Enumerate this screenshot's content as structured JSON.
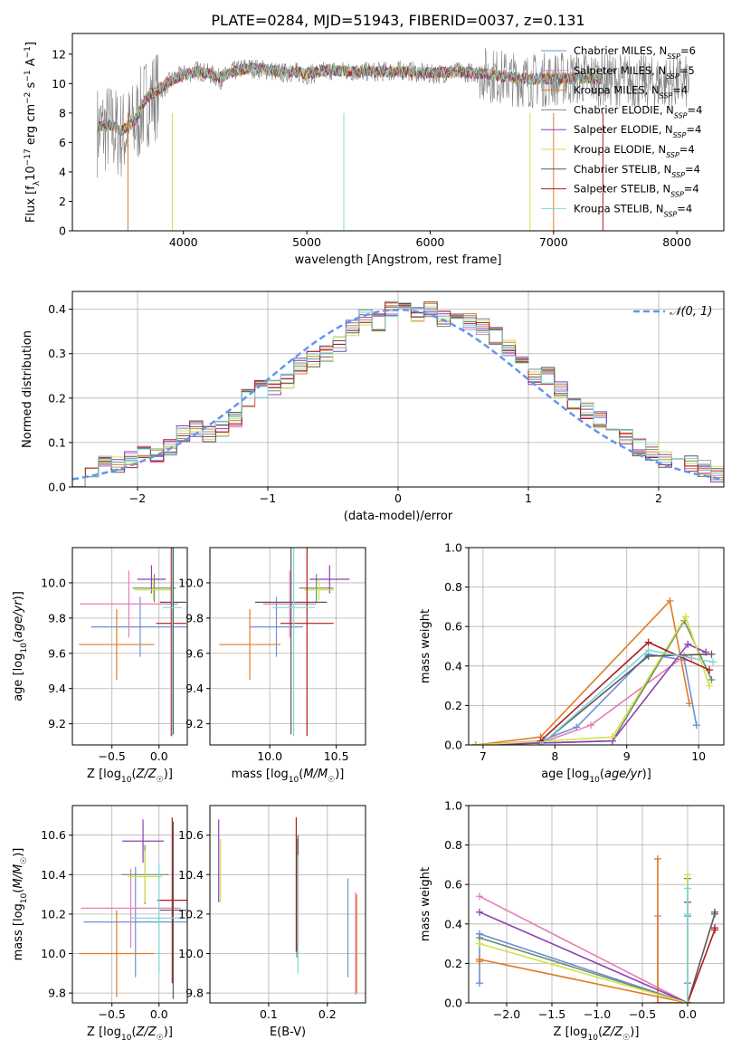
{
  "title": "PLATE=0284, MJD=51943, FIBERID=0037, z=0.131",
  "colors": {
    "Chabrier MILES": "#6f8fd8",
    "Salpeter MILES": "#e77cb6",
    "Kroupa MILES": "#e07b28",
    "Chabrier ELODIE": "#6e8f6e",
    "Salpeter ELODIE": "#8e3fb3",
    "Kroupa ELODIE": "#d2e24a",
    "Chabrier STELIB": "#5a5a5a",
    "Salpeter STELIB": "#b01e1e",
    "Kroupa STELIB": "#7fd8d8"
  },
  "chart_data": [
    {
      "id": "spectrum",
      "type": "line",
      "xlabel": "wavelength [Angstrom, rest frame]",
      "ylabel": "Flux [f_λ10^-17 erg cm^-2 s^-1 A^-1]",
      "xlim": [
        3100,
        8380
      ],
      "ylim": [
        0,
        13.4
      ],
      "xticks": [
        4000,
        5000,
        6000,
        7000,
        8000
      ],
      "yticks": [
        0,
        2,
        4,
        6,
        8,
        10,
        12
      ],
      "legend_position": "top-right",
      "legend": [
        "Chabrier MILES, N_SSP=6",
        "Salpeter MILES, N_SSP=5",
        "Kroupa MILES, N_SSP=4",
        "Chabrier ELODIE, N_SSP=4",
        "Salpeter ELODIE, N_SSP=4",
        "Kroupa ELODIE, N_SSP=4",
        "Chabrier STELIB, N_SSP=4",
        "Salpeter STELIB, N_SSP=4",
        "Kroupa STELIB, N_SSP=4"
      ],
      "data_x": [
        3300,
        3400,
        3500,
        3600,
        3700,
        3800,
        3900,
        4000,
        4100,
        4200,
        4300,
        4400,
        4500,
        4600,
        4700,
        4800,
        4900,
        5000,
        5200,
        5400,
        5600,
        5800,
        6000,
        6200,
        6400,
        6600,
        6800,
        7000,
        7200,
        7400,
        7600,
        7800,
        8000,
        8100
      ],
      "data_y": [
        6.8,
        7.0,
        6.5,
        7.1,
        8.8,
        9.4,
        10.2,
        10.6,
        10.9,
        10.7,
        10.3,
        10.8,
        11.1,
        11.0,
        10.9,
        10.7,
        10.8,
        10.6,
        10.9,
        10.8,
        10.8,
        10.9,
        10.6,
        10.8,
        10.7,
        10.4,
        10.2,
        10.3,
        10.4,
        10.3,
        10.2,
        10.0,
        10.1,
        10.0
      ],
      "model_x": [
        3300,
        3400,
        3500,
        3600,
        3700,
        3800,
        3900,
        4000,
        4100,
        4200,
        4300,
        4400,
        4500,
        4600,
        4700,
        4800,
        4900,
        5000,
        5200,
        5400,
        5600,
        5800,
        6000,
        6200,
        6400,
        6600,
        6800,
        7000,
        7200,
        7400
      ],
      "model_y": [
        7.0,
        7.2,
        6.8,
        7.4,
        9.0,
        9.6,
        10.2,
        10.6,
        10.8,
        10.7,
        10.4,
        10.8,
        11.0,
        11.0,
        10.9,
        10.8,
        10.8,
        10.7,
        10.9,
        10.8,
        10.8,
        10.8,
        10.7,
        10.8,
        10.7,
        10.5,
        10.3,
        10.3,
        10.4,
        10.3
      ]
    },
    {
      "id": "residual_hist",
      "type": "bar",
      "xlabel": "(data-model)/error",
      "ylabel": "Normed distribution",
      "xlim": [
        -2.5,
        2.5
      ],
      "ylim": [
        0,
        0.44
      ],
      "xticks": [
        -2,
        -1,
        0,
        1,
        2
      ],
      "xtick_labels": [
        "−2",
        "−1",
        "0",
        "1",
        "2"
      ],
      "yticks": [
        0,
        0.1,
        0.2,
        0.3,
        0.4
      ],
      "ytick_labels": [
        "0.0",
        "0.1",
        "0.2",
        "0.3",
        "0.4"
      ],
      "grid": true,
      "legend": [
        "𝒩(0, 1)"
      ],
      "bin_edges_start": -2.5,
      "bin_width": 0.1,
      "hist_values": [
        0.02,
        0.04,
        0.05,
        0.05,
        0.06,
        0.08,
        0.07,
        0.09,
        0.12,
        0.13,
        0.12,
        0.13,
        0.15,
        0.2,
        0.22,
        0.22,
        0.24,
        0.27,
        0.29,
        0.3,
        0.32,
        0.36,
        0.38,
        0.37,
        0.4,
        0.41,
        0.39,
        0.4,
        0.38,
        0.38,
        0.37,
        0.36,
        0.34,
        0.31,
        0.28,
        0.25,
        0.25,
        0.22,
        0.19,
        0.17,
        0.15,
        0.13,
        0.11,
        0.09,
        0.08,
        0.06,
        0.06,
        0.05,
        0.04,
        0.03
      ]
    },
    {
      "id": "age_vs_Z",
      "type": "scatter",
      "xlabel": "Z [log10(Z/Z☉)]",
      "ylabel": "age  [log10(age/yr)]",
      "xlim": [
        -0.92,
        0.3
      ],
      "ylim": [
        9.08,
        10.2
      ],
      "xticks": [
        -0.5,
        0.0
      ],
      "xtick_labels": [
        "−0.5",
        "0.0"
      ],
      "yticks": [
        9.2,
        9.4,
        9.6,
        9.8,
        10.0
      ],
      "yticks_labels": [
        "9.2",
        "9.4",
        "9.6",
        "9.8",
        "10.0"
      ],
      "points": [
        {
          "model": "Chabrier MILES",
          "x": -0.2,
          "xerr": 0.52,
          "y": 9.75,
          "yerr": 0.17
        },
        {
          "model": "Salpeter MILES",
          "x": -0.32,
          "xerr": 0.52,
          "y": 9.88,
          "yerr": 0.19
        },
        {
          "model": "Kroupa MILES",
          "x": -0.45,
          "xerr": 0.4,
          "y": 9.65,
          "yerr": 0.2
        },
        {
          "model": "Chabrier ELODIE",
          "x": -0.05,
          "xerr": 0.23,
          "y": 9.97,
          "yerr": 0.08
        },
        {
          "model": "Salpeter ELODIE",
          "x": -0.08,
          "xerr": 0.15,
          "y": 10.02,
          "yerr": 0.08
        },
        {
          "model": "Kroupa ELODIE",
          "x": -0.06,
          "xerr": 0.2,
          "y": 9.96,
          "yerr": 0.06
        },
        {
          "model": "Chabrier STELIB",
          "x": 0.15,
          "xerr": 0.14,
          "y": 9.89,
          "yerr": 0.75
        },
        {
          "model": "Salpeter STELIB",
          "x": 0.13,
          "xerr": 0.16,
          "y": 9.77,
          "yerr": 0.64
        },
        {
          "model": "Kroupa STELIB",
          "x": 0.14,
          "xerr": 0.1,
          "y": 9.86,
          "yerr": 0.73
        }
      ]
    },
    {
      "id": "age_vs_mass",
      "type": "scatter",
      "xlabel": "mass [log10(M/M☉)]",
      "xlim": [
        9.55,
        10.72
      ],
      "ylim": [
        9.08,
        10.2
      ],
      "xticks": [
        10.0,
        10.5
      ],
      "xtick_labels": [
        "10.0",
        "10.5"
      ],
      "yticks": [
        9.2,
        9.4,
        9.6,
        9.8,
        10.0
      ],
      "yticks_labels": [
        "9.2",
        "9.4",
        "9.6",
        "9.8",
        "10.0"
      ],
      "points": [
        {
          "model": "Chabrier MILES",
          "x": 10.05,
          "xerr": 0.2,
          "y": 9.75,
          "yerr": 0.17
        },
        {
          "model": "Salpeter MILES",
          "x": 10.15,
          "xerr": 0.2,
          "y": 9.88,
          "yerr": 0.19
        },
        {
          "model": "Kroupa MILES",
          "x": 9.85,
          "xerr": 0.23,
          "y": 9.65,
          "yerr": 0.2
        },
        {
          "model": "Chabrier ELODIE",
          "x": 10.35,
          "xerr": 0.13,
          "y": 9.97,
          "yerr": 0.08
        },
        {
          "model": "Salpeter ELODIE",
          "x": 10.45,
          "xerr": 0.15,
          "y": 10.02,
          "yerr": 0.08
        },
        {
          "model": "Kroupa ELODIE",
          "x": 10.37,
          "xerr": 0.11,
          "y": 9.96,
          "yerr": 0.06
        },
        {
          "model": "Chabrier STELIB",
          "x": 10.16,
          "xerr": 0.27,
          "y": 9.89,
          "yerr": 0.75
        },
        {
          "model": "Salpeter STELIB",
          "x": 10.28,
          "xerr": 0.2,
          "y": 9.77,
          "yerr": 0.64
        },
        {
          "model": "Kroupa STELIB",
          "x": 10.18,
          "xerr": 0.16,
          "y": 9.86,
          "yerr": 0.73
        }
      ]
    },
    {
      "id": "weight_vs_age",
      "type": "line",
      "xlabel": "age  [log10(age/yr)]",
      "ylabel": "mass weight",
      "xlim": [
        6.8,
        10.35
      ],
      "ylim": [
        0,
        1
      ],
      "xticks": [
        7,
        8,
        9,
        10
      ],
      "xtick_labels": [
        "7",
        "8",
        "9",
        "10"
      ],
      "yticks": [
        0,
        0.2,
        0.4,
        0.6,
        0.8,
        1.0
      ],
      "ytick_labels": [
        "0.0",
        "0.2",
        "0.4",
        "0.6",
        "0.8",
        "1.0"
      ],
      "grid": true,
      "series": [
        {
          "model": "Chabrier MILES",
          "x": [
            6.9,
            7.8,
            8.3,
            9.3,
            9.8,
            9.97
          ],
          "y": [
            0.0,
            0.02,
            0.09,
            0.46,
            0.43,
            0.1
          ]
        },
        {
          "model": "Salpeter MILES",
          "x": [
            6.9,
            7.8,
            8.5,
            9.8,
            9.9
          ],
          "y": [
            0.0,
            0.01,
            0.1,
            0.45,
            0.44
          ]
        },
        {
          "model": "Kroupa MILES",
          "x": [
            6.9,
            7.8,
            9.6,
            9.87
          ],
          "y": [
            0.0,
            0.04,
            0.73,
            0.21
          ]
        },
        {
          "model": "Chabrier ELODIE",
          "x": [
            6.9,
            8.8,
            9.8,
            10.18
          ],
          "y": [
            0.0,
            0.02,
            0.63,
            0.33
          ]
        },
        {
          "model": "Salpeter ELODIE",
          "x": [
            6.9,
            8.8,
            9.85,
            10.1
          ],
          "y": [
            0.0,
            0.02,
            0.51,
            0.47
          ]
        },
        {
          "model": "Kroupa ELODIE",
          "x": [
            6.9,
            8.8,
            9.82,
            10.15
          ],
          "y": [
            0.0,
            0.04,
            0.65,
            0.3
          ]
        },
        {
          "model": "Chabrier STELIB",
          "x": [
            7.8,
            9.3,
            10.18
          ],
          "y": [
            0.0,
            0.45,
            0.46
          ]
        },
        {
          "model": "Salpeter STELIB",
          "x": [
            7.8,
            9.3,
            10.15
          ],
          "y": [
            0.02,
            0.52,
            0.38
          ]
        },
        {
          "model": "Kroupa STELIB",
          "x": [
            7.8,
            9.3,
            10.2
          ],
          "y": [
            0.0,
            0.48,
            0.42
          ]
        }
      ]
    },
    {
      "id": "mass_vs_Z",
      "type": "scatter",
      "xlabel": "Z [log10(Z/Z☉)]",
      "ylabel": "mass [log10(M/M☉)]",
      "xlim": [
        -0.92,
        0.3
      ],
      "ylim": [
        9.75,
        10.75
      ],
      "xticks": [
        -0.5,
        0.0
      ],
      "xtick_labels": [
        "−0.5",
        "0.0"
      ],
      "yticks": [
        9.8,
        10.0,
        10.2,
        10.4,
        10.6
      ],
      "ytick_labels": [
        "9.8",
        "10.0",
        "10.2",
        "10.4",
        "10.6"
      ],
      "points": [
        {
          "model": "Chabrier MILES",
          "x": -0.25,
          "xerr": 0.55,
          "y": 10.16,
          "yerr": 0.28
        },
        {
          "model": "Salpeter MILES",
          "x": -0.3,
          "xerr": 0.53,
          "y": 10.23,
          "yerr": 0.2
        },
        {
          "model": "Kroupa MILES",
          "x": -0.45,
          "xerr": 0.4,
          "y": 10.0,
          "yerr": 0.22
        },
        {
          "model": "Chabrier ELODIE",
          "x": -0.15,
          "xerr": 0.25,
          "y": 10.4,
          "yerr": 0.15
        },
        {
          "model": "Salpeter ELODIE",
          "x": -0.17,
          "xerr": 0.22,
          "y": 10.57,
          "yerr": 0.11
        },
        {
          "model": "Kroupa ELODIE",
          "x": -0.15,
          "xerr": 0.18,
          "y": 10.39,
          "yerr": 0.13
        },
        {
          "model": "Chabrier STELIB",
          "x": 0.15,
          "xerr": 0.14,
          "y": 10.22,
          "yerr": 0.45
        },
        {
          "model": "Salpeter STELIB",
          "x": 0.14,
          "xerr": 0.16,
          "y": 10.27,
          "yerr": 0.42
        },
        {
          "model": "Kroupa STELIB",
          "x": 0.0,
          "xerr": 0.3,
          "y": 10.18,
          "yerr": 0.28
        }
      ]
    },
    {
      "id": "mass_vs_ebv",
      "type": "scatter",
      "xlabel": "E(B-V)",
      "xlim": [
        0.0,
        0.265
      ],
      "ylim": [
        9.75,
        10.75
      ],
      "xticks": [
        0.1,
        0.2
      ],
      "xtick_labels": [
        "0.1",
        "0.2"
      ],
      "yticks": [
        9.8,
        10.0,
        10.2,
        10.4,
        10.6
      ],
      "ytick_labels": [
        "9.8",
        "10.0",
        "10.2",
        "10.4",
        "10.6"
      ],
      "points": [
        {
          "model": "Chabrier MILES",
          "x": 0.235,
          "xerr": 0.0,
          "y": 10.13,
          "yerr": 0.25
        },
        {
          "model": "Salpeter MILES",
          "x": 0.248,
          "xerr": 0.0,
          "y": 10.05,
          "yerr": 0.26
        },
        {
          "model": "Kroupa MILES",
          "x": 0.25,
          "xerr": 0.0,
          "y": 10.05,
          "yerr": 0.25
        },
        {
          "model": "Chabrier ELODIE",
          "x": 0.148,
          "xerr": 0.0,
          "y": 10.28,
          "yerr": 0.3
        },
        {
          "model": "Salpeter ELODIE",
          "x": 0.015,
          "xerr": 0.0,
          "y": 10.47,
          "yerr": 0.21
        },
        {
          "model": "Kroupa ELODIE",
          "x": 0.018,
          "xerr": 0.0,
          "y": 10.42,
          "yerr": 0.16
        },
        {
          "model": "Chabrier STELIB",
          "x": 0.15,
          "xerr": 0.0,
          "y": 10.3,
          "yerr": 0.3
        },
        {
          "model": "Salpeter STELIB",
          "x": 0.147,
          "xerr": 0.0,
          "y": 10.35,
          "yerr": 0.34
        },
        {
          "model": "Kroupa STELIB",
          "x": 0.15,
          "xerr": 0.0,
          "y": 10.2,
          "yerr": 0.3
        }
      ]
    },
    {
      "id": "weight_vs_Z",
      "type": "line",
      "xlabel": "Z [log10(Z/Z☉)]",
      "ylabel": "mass weight",
      "xlim": [
        -2.42,
        0.4
      ],
      "ylim": [
        0,
        1
      ],
      "xticks": [
        -2.0,
        -1.5,
        -1.0,
        -0.5,
        0.0
      ],
      "xtick_labels": [
        "−2.0",
        "−1.5",
        "−1.0",
        "−0.5",
        "0.0"
      ],
      "yticks": [
        0,
        0.2,
        0.4,
        0.6,
        0.8,
        1.0
      ],
      "ytick_labels": [
        "0.0",
        "0.2",
        "0.4",
        "0.6",
        "0.8",
        "1.0"
      ],
      "grid": true,
      "series": [
        {
          "model": "Chabrier MILES",
          "x": [
            -2.3,
            -2.3,
            0.0,
            0.0,
            0.0
          ],
          "y": [
            0.1,
            0.35,
            0.0,
            0.1,
            0.44
          ]
        },
        {
          "model": "Salpeter MILES",
          "x": [
            -2.3,
            0.0,
            -0.33,
            -0.33
          ],
          "y": [
            0.54,
            0.0,
            0.0,
            0.44
          ]
        },
        {
          "model": "Kroupa MILES",
          "x": [
            -2.3,
            -2.3,
            0.0,
            -0.33,
            -0.33
          ],
          "y": [
            0.21,
            0.22,
            0.0,
            0.0,
            0.73
          ]
        },
        {
          "model": "Chabrier ELODIE",
          "x": [
            -2.3,
            0.0,
            0.0
          ],
          "y": [
            0.33,
            0.0,
            0.63
          ]
        },
        {
          "model": "Salpeter ELODIE",
          "x": [
            -2.3,
            0.0,
            0.0
          ],
          "y": [
            0.46,
            0.0,
            0.51
          ]
        },
        {
          "model": "Kroupa ELODIE",
          "x": [
            -2.3,
            0.0,
            0.0
          ],
          "y": [
            0.3,
            0.0,
            0.65
          ]
        },
        {
          "model": "Chabrier STELIB",
          "x": [
            0.0,
            0.3,
            0.3
          ],
          "y": [
            0.0,
            0.45,
            0.46
          ]
        },
        {
          "model": "Salpeter STELIB",
          "x": [
            0.0,
            0.3,
            0.3
          ],
          "y": [
            0.0,
            0.37,
            0.38
          ]
        },
        {
          "model": "Kroupa STELIB",
          "x": [
            0.0,
            0.0,
            0.0
          ],
          "y": [
            0.0,
            0.45,
            0.58
          ]
        }
      ]
    }
  ]
}
